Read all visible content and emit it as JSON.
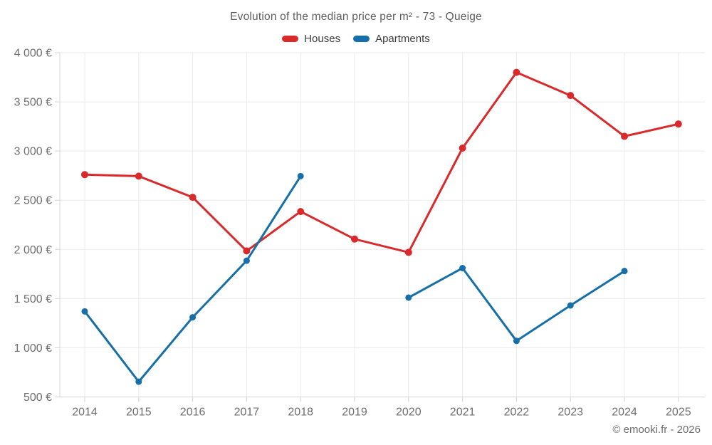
{
  "title": "Evolution of the median price per m² - 73 - Queige",
  "footer": "© emooki.fr - 2026",
  "colors": {
    "houses": "#d9292b",
    "apartments": "#166fa8",
    "grid": "#ebebeb",
    "axis": "#d6d6d6",
    "tick_text": "#6f6f6f",
    "title_text": "#5e5e5e",
    "legend_text": "#3d3d3d"
  },
  "chart_data": {
    "type": "line",
    "x": [
      "2014",
      "2015",
      "2016",
      "2017",
      "2018",
      "2019",
      "2020",
      "2021",
      "2022",
      "2023",
      "2024",
      "2025"
    ],
    "series": [
      {
        "name": "Houses",
        "color": "#d9292b",
        "values": [
          2760,
          2745,
          2530,
          1985,
          2385,
          2105,
          1970,
          3030,
          3800,
          3565,
          3150,
          3275
        ]
      },
      {
        "name": "Apartments",
        "color": "#166fa8",
        "values": [
          1370,
          655,
          1310,
          1885,
          2745,
          null,
          1510,
          1810,
          1070,
          1430,
          1780,
          null
        ]
      }
    ],
    "title": "Evolution of the median price per m² - 73 - Queige",
    "xlabel": "",
    "ylabel": "",
    "ylim": [
      500,
      4000
    ],
    "ytick_step": 500,
    "ytick_labels": [
      "500 €",
      "1 000 €",
      "1 500 €",
      "2 000 €",
      "2 500 €",
      "3 000 €",
      "3 500 €",
      "4 000 €"
    ],
    "grid": true,
    "legend_position": "top",
    "annotation": "Apartments series has no data for 2019 and 2025"
  }
}
